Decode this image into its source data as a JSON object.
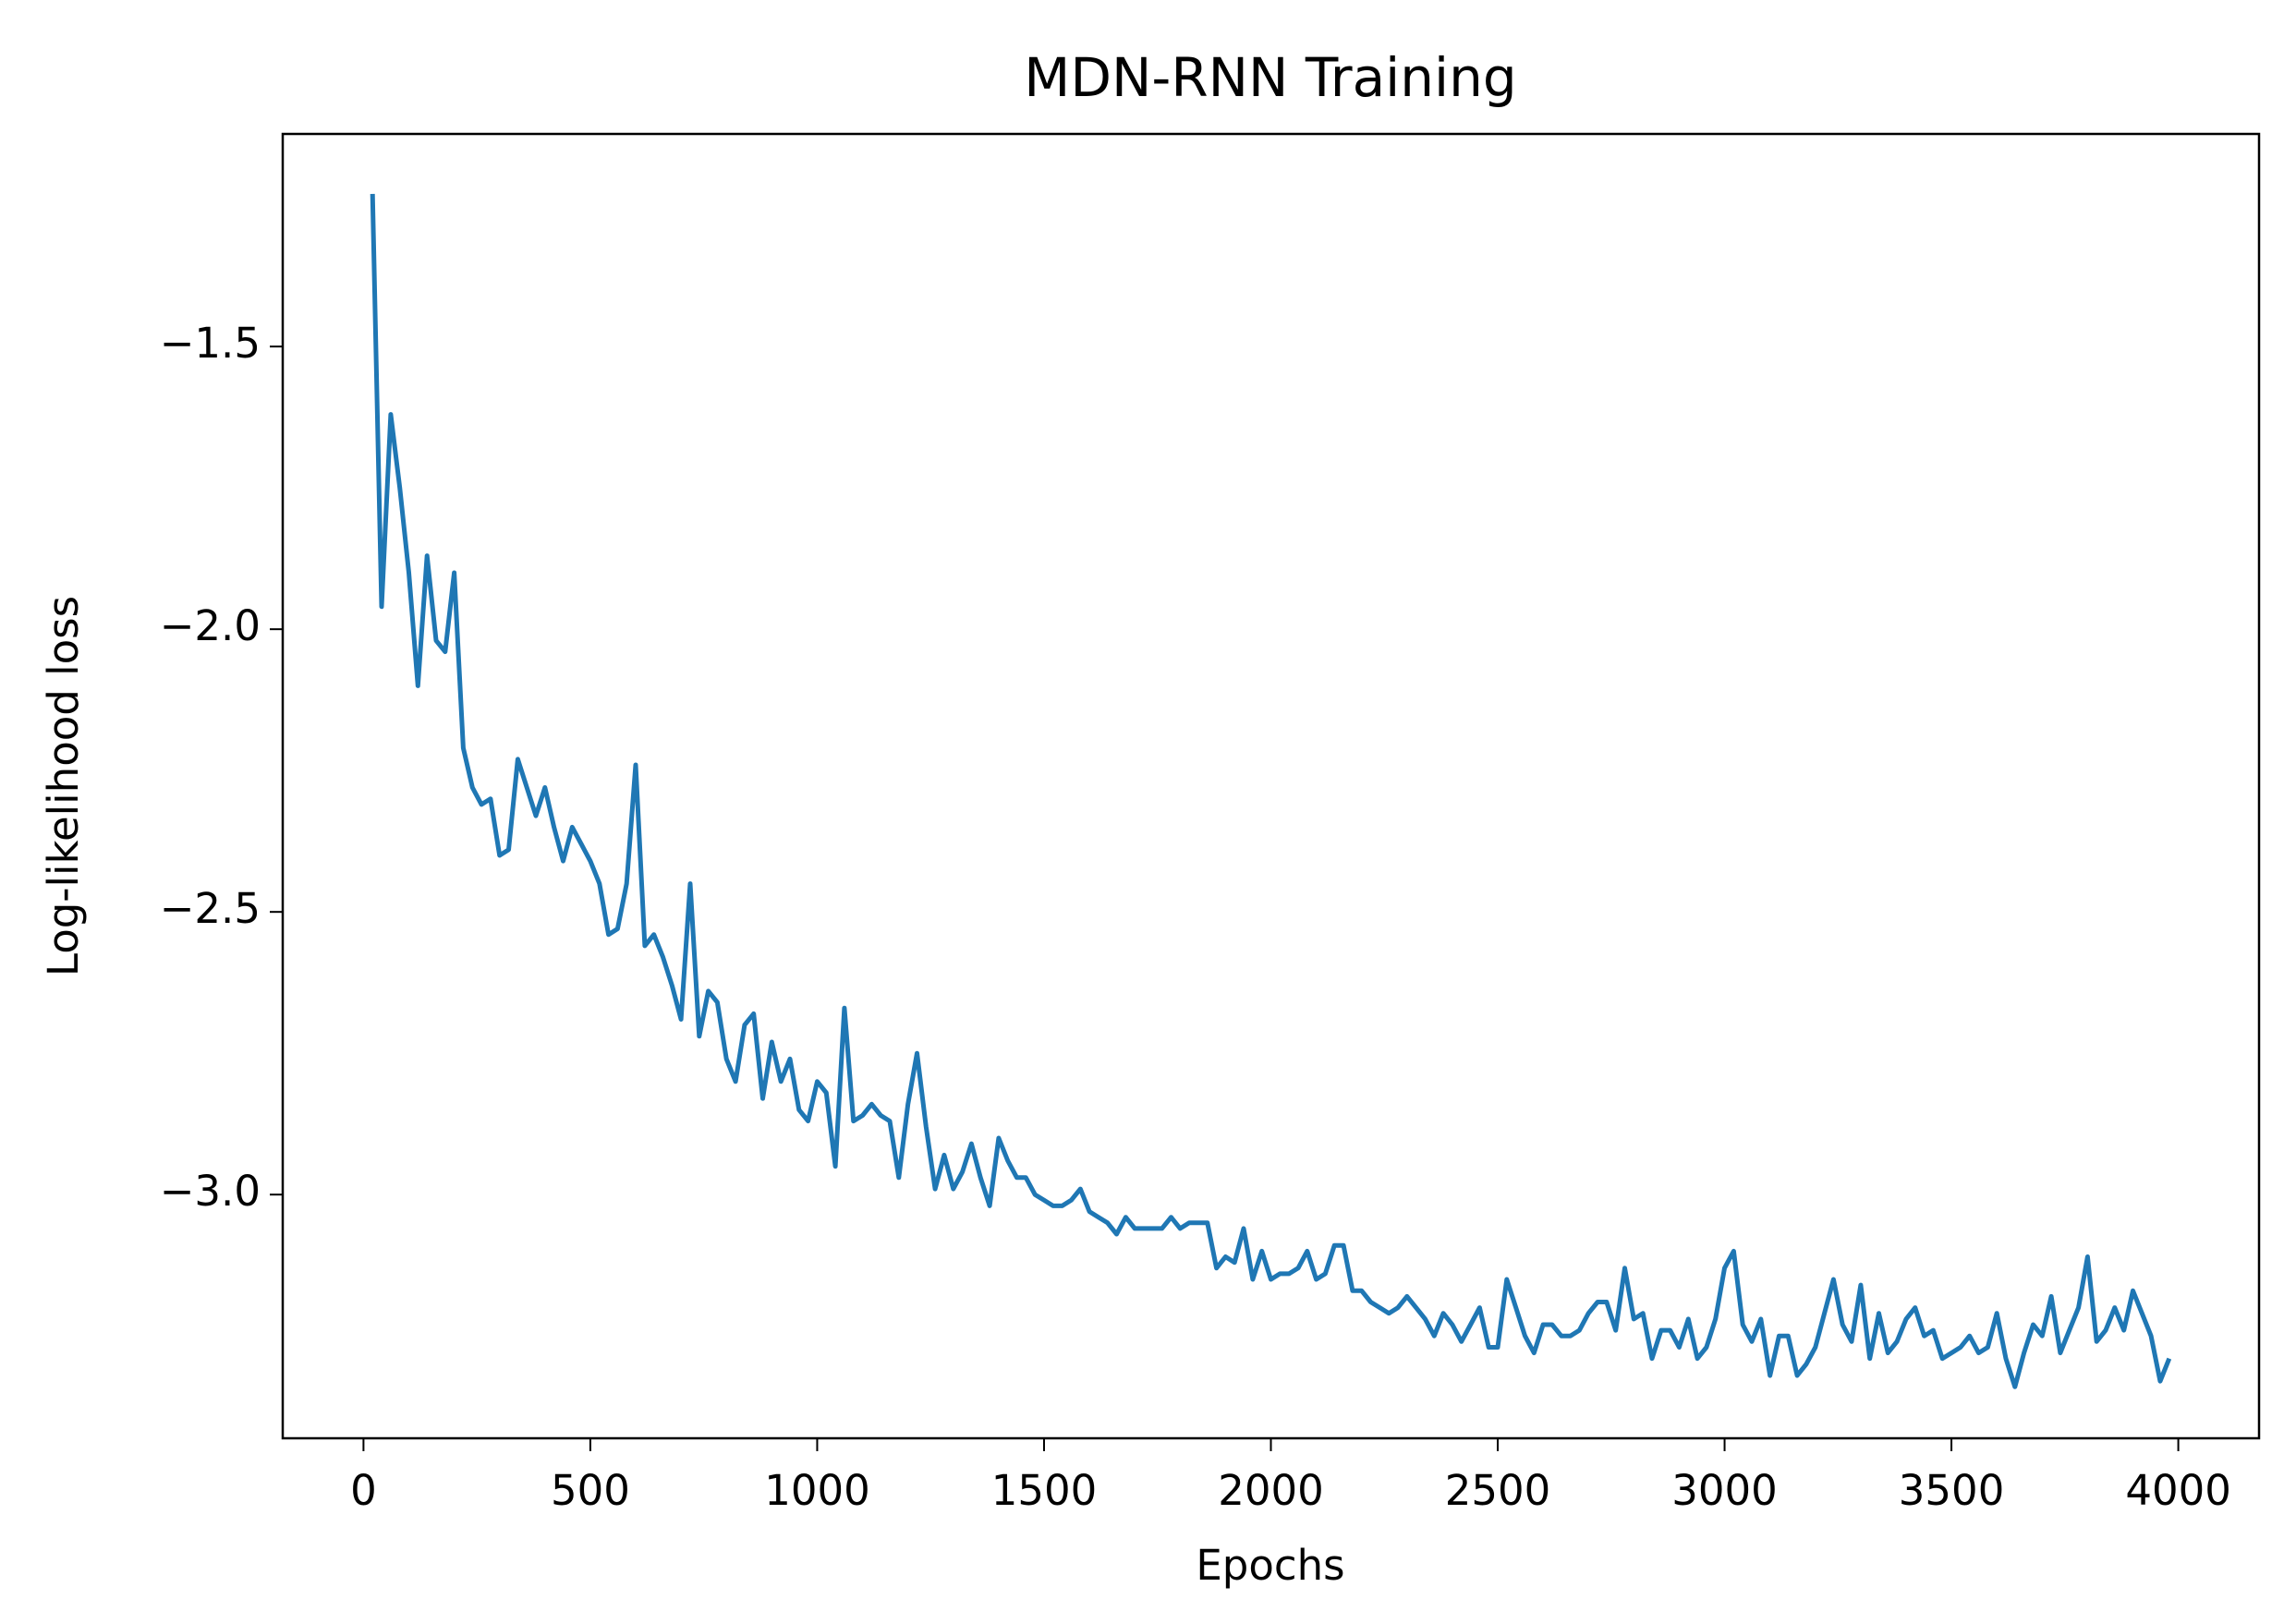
{
  "chart_data": {
    "type": "line",
    "title": "MDN-RNN Training",
    "x_label": "Epochs",
    "y_label": "Log-likelihood loss",
    "xlim": [
      -178,
      4178
    ],
    "ylim": [
      -3.431,
      -1.124
    ],
    "xticks": [
      0,
      500,
      1000,
      1500,
      2000,
      2500,
      3000,
      3500,
      4000
    ],
    "yticks": [
      {
        "value": -3.0,
        "label": "−3.0"
      },
      {
        "value": -2.5,
        "label": "−2.5"
      },
      {
        "value": -2.0,
        "label": "−2.0"
      },
      {
        "value": -1.5,
        "label": "−1.5"
      }
    ],
    "x": [
      20,
      40,
      60,
      80,
      100,
      120,
      140,
      160,
      180,
      200,
      220,
      240,
      260,
      280,
      300,
      320,
      340,
      360,
      380,
      400,
      420,
      440,
      460,
      480,
      500,
      520,
      540,
      560,
      580,
      600,
      620,
      640,
      660,
      680,
      700,
      720,
      740,
      760,
      780,
      800,
      820,
      840,
      860,
      880,
      900,
      920,
      940,
      960,
      980,
      1000,
      1020,
      1040,
      1060,
      1080,
      1100,
      1120,
      1140,
      1160,
      1180,
      1200,
      1220,
      1240,
      1260,
      1280,
      1300,
      1320,
      1340,
      1360,
      1380,
      1400,
      1420,
      1440,
      1460,
      1480,
      1500,
      1520,
      1540,
      1560,
      1580,
      1600,
      1620,
      1640,
      1660,
      1680,
      1700,
      1720,
      1740,
      1760,
      1780,
      1800,
      1820,
      1840,
      1860,
      1880,
      1900,
      1920,
      1940,
      1960,
      1980,
      2000,
      2020,
      2040,
      2060,
      2080,
      2100,
      2120,
      2140,
      2160,
      2180,
      2200,
      2220,
      2240,
      2260,
      2280,
      2300,
      2320,
      2340,
      2360,
      2380,
      2400,
      2420,
      2440,
      2460,
      2480,
      2500,
      2520,
      2540,
      2560,
      2580,
      2600,
      2620,
      2640,
      2660,
      2680,
      2700,
      2720,
      2740,
      2760,
      2780,
      2800,
      2820,
      2840,
      2860,
      2880,
      2900,
      2920,
      2940,
      2960,
      2980,
      3000,
      3020,
      3040,
      3060,
      3080,
      3100,
      3120,
      3140,
      3160,
      3180,
      3200,
      3220,
      3240,
      3260,
      3280,
      3300,
      3320,
      3340,
      3360,
      3380,
      3400,
      3420,
      3440,
      3460,
      3480,
      3500,
      3520,
      3540,
      3560,
      3580,
      3600,
      3620,
      3640,
      3660,
      3680,
      3700,
      3720,
      3740,
      3760,
      3780,
      3800,
      3820,
      3840,
      3860,
      3880,
      3900,
      3920,
      3940,
      3960,
      3980
    ],
    "series": [
      {
        "color": "#1f77b4",
        "values": [
          -1.23,
          -1.96,
          -1.62,
          -1.75,
          -1.9,
          -2.1,
          -1.87,
          -2.02,
          -2.04,
          -1.9,
          -2.21,
          -2.28,
          -2.31,
          -2.3,
          -2.4,
          -2.39,
          -2.23,
          -2.28,
          -2.33,
          -2.28,
          -2.35,
          -2.41,
          -2.35,
          -2.38,
          -2.41,
          -2.45,
          -2.54,
          -2.53,
          -2.45,
          -2.24,
          -2.56,
          -2.54,
          -2.58,
          -2.63,
          -2.69,
          -2.45,
          -2.72,
          -2.64,
          -2.66,
          -2.76,
          -2.8,
          -2.7,
          -2.68,
          -2.83,
          -2.73,
          -2.8,
          -2.76,
          -2.85,
          -2.87,
          -2.8,
          -2.82,
          -2.95,
          -2.67,
          -2.87,
          -2.86,
          -2.84,
          -2.86,
          -2.87,
          -2.97,
          -2.84,
          -2.75,
          -2.88,
          -2.99,
          -2.93,
          -2.99,
          -2.96,
          -2.91,
          -2.97,
          -3.02,
          -2.9,
          -2.94,
          -2.97,
          -2.97,
          -3.0,
          -3.01,
          -3.02,
          -3.02,
          -3.01,
          -2.99,
          -3.03,
          -3.04,
          -3.05,
          -3.07,
          -3.04,
          -3.06,
          -3.06,
          -3.06,
          -3.06,
          -3.04,
          -3.06,
          -3.05,
          -3.05,
          -3.05,
          -3.13,
          -3.11,
          -3.12,
          -3.06,
          -3.15,
          -3.1,
          -3.15,
          -3.14,
          -3.14,
          -3.13,
          -3.1,
          -3.15,
          -3.14,
          -3.09,
          -3.09,
          -3.17,
          -3.17,
          -3.19,
          -3.2,
          -3.21,
          -3.2,
          -3.18,
          -3.2,
          -3.22,
          -3.25,
          -3.21,
          -3.23,
          -3.26,
          -3.23,
          -3.2,
          -3.27,
          -3.27,
          -3.15,
          -3.2,
          -3.25,
          -3.28,
          -3.23,
          -3.23,
          -3.25,
          -3.25,
          -3.24,
          -3.21,
          -3.19,
          -3.19,
          -3.24,
          -3.13,
          -3.22,
          -3.21,
          -3.29,
          -3.24,
          -3.24,
          -3.27,
          -3.22,
          -3.29,
          -3.27,
          -3.22,
          -3.13,
          -3.1,
          -3.23,
          -3.26,
          -3.22,
          -3.32,
          -3.25,
          -3.25,
          -3.32,
          -3.3,
          -3.27,
          -3.21,
          -3.15,
          -3.23,
          -3.26,
          -3.16,
          -3.29,
          -3.21,
          -3.28,
          -3.26,
          -3.22,
          -3.2,
          -3.25,
          -3.24,
          -3.29,
          -3.28,
          -3.27,
          -3.25,
          -3.28,
          -3.27,
          -3.21,
          -3.29,
          -3.34,
          -3.28,
          -3.23,
          -3.25,
          -3.18,
          -3.28,
          -3.24,
          -3.2,
          -3.11,
          -3.26,
          -3.24,
          -3.2,
          -3.24,
          -3.17,
          -3.21,
          -3.25,
          -3.33,
          -3.29
        ]
      }
    ]
  }
}
